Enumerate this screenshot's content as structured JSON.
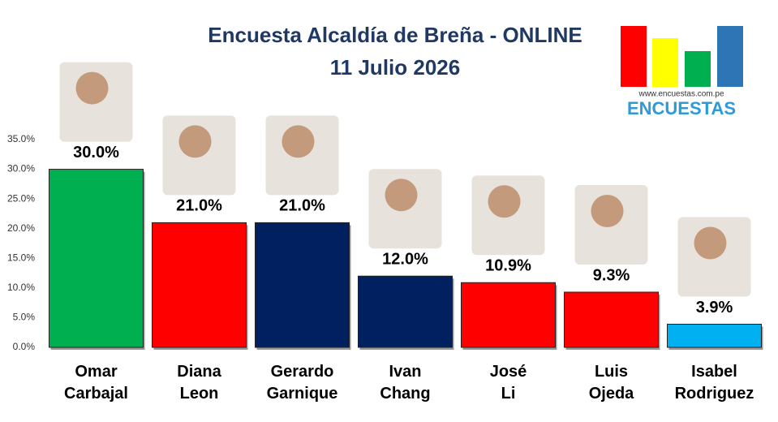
{
  "chart_data": {
    "type": "bar",
    "title": "Encuesta Alcaldía de Breña - ONLINE",
    "subtitle": "11 Julio 2026",
    "source": "www.encuestas.com.pe",
    "brand": "ENCUESTAS",
    "categories": [
      "Omar\nCarbajal",
      "Diana\nLeon",
      "Gerardo\nGarnique",
      "Ivan\nChang",
      "José\nLi",
      "Luis\nOjeda",
      "Isabel\nRodriguez"
    ],
    "values": [
      30.0,
      21.0,
      21.0,
      12.0,
      10.9,
      9.3,
      3.9
    ],
    "value_labels": [
      "30.0%",
      "21.0%",
      "21.0%",
      "12.0%",
      "10.9%",
      "9.3%",
      "3.9%"
    ],
    "colors": [
      "#00b050",
      "#ff0000",
      "#002060",
      "#002060",
      "#ff0000",
      "#ff0000",
      "#00b0f0"
    ],
    "ylim": [
      0,
      35
    ],
    "yticks": [
      {
        "value": 0,
        "label": "0.0%"
      },
      {
        "value": 5,
        "label": "5.0%"
      },
      {
        "value": 10,
        "label": "10.0%"
      },
      {
        "value": 15,
        "label": "15.0%"
      },
      {
        "value": 20,
        "label": "20.0%"
      },
      {
        "value": 25,
        "label": "25.0%"
      },
      {
        "value": 30,
        "label": "30.0%"
      },
      {
        "value": 35,
        "label": "35.0%"
      }
    ],
    "grid": false
  }
}
